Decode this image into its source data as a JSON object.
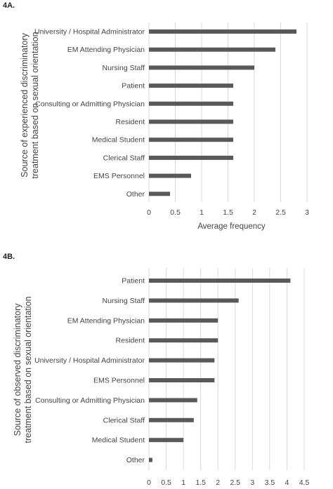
{
  "chart_data": [
    {
      "id": "A",
      "panel_label": "4A.",
      "type": "bar",
      "orientation": "horizontal",
      "ylabel_lines": [
        "Source of experienced discriminatory",
        "treatment based on sexual orientation"
      ],
      "xlabel": "Average frequency",
      "xlim": [
        0,
        3
      ],
      "xticks": [
        "0",
        "0.5",
        "1",
        "1.5",
        "2",
        "2.5",
        "3"
      ],
      "grid": true,
      "categories": [
        "University / Hospital Administrator",
        "EM Attending Physician",
        "Nursing Staff",
        "Patient",
        "Consulting or Admitting Physician",
        "Resident",
        "Medical Student",
        "Clerical Staff",
        "EMS Personnel",
        "Other"
      ],
      "values": [
        2.8,
        2.4,
        2.0,
        1.6,
        1.6,
        1.6,
        1.6,
        1.6,
        0.8,
        0.4
      ]
    },
    {
      "id": "B",
      "panel_label": "4B.",
      "type": "bar",
      "orientation": "horizontal",
      "ylabel_lines": [
        "Source of observed discriminatory",
        "treatment based on sexual orientation"
      ],
      "xlabel": "",
      "xlim": [
        0,
        4.5
      ],
      "xticks": [
        "0",
        "0.5",
        "1",
        "1.5",
        "2",
        "2.5",
        "3",
        "3.5",
        "4",
        "4.5"
      ],
      "grid": true,
      "categories": [
        "Patient",
        "Nursing Staff",
        "EM Attending Physician",
        "Resident",
        "University / Hospital Administrator",
        "EMS Personnel",
        "Consulting or Admitting Physician",
        "Clerical Staff",
        "Medical Student",
        "Other"
      ],
      "values": [
        4.1,
        2.6,
        2.0,
        2.0,
        1.9,
        1.9,
        1.4,
        1.3,
        1.0,
        0.1
      ]
    }
  ]
}
